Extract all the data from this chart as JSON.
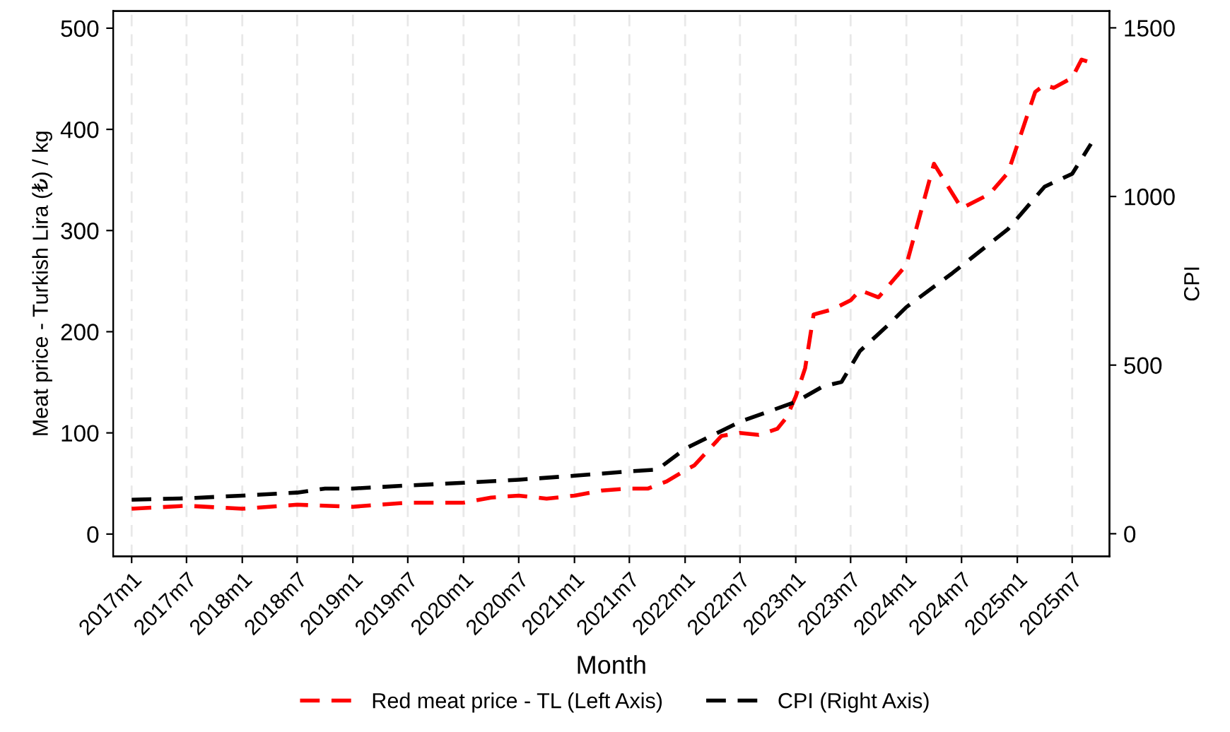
{
  "chart_data": {
    "type": "line",
    "xlabel": "Month",
    "ylabel": "Meat price - Turkish Lira (₺) / kg",
    "y2label": "CPI",
    "series": [
      {
        "name": "Red meat price - TL (Left Axis)",
        "color": "#ff0000",
        "axis": "y",
        "line_style": "dashed",
        "x": [
          "2017-01",
          "2017-07",
          "2018-01",
          "2018-07",
          "2019-01",
          "2019-07",
          "2020-01",
          "2020-04",
          "2020-07",
          "2020-10",
          "2021-01",
          "2021-04",
          "2021-07",
          "2021-09",
          "2021-11",
          "2022-01",
          "2022-02",
          "2022-05",
          "2022-07",
          "2022-09",
          "2022-11",
          "2022-12",
          "2023-01",
          "2023-02",
          "2023-03",
          "2023-05",
          "2023-07",
          "2023-08",
          "2023-10",
          "2024-01",
          "2024-04",
          "2024-07",
          "2024-10",
          "2024-12",
          "2025-03",
          "2025-04",
          "2025-05",
          "2025-07",
          "2025-08",
          "2025-09"
        ],
        "values": [
          25,
          28,
          25,
          29,
          27,
          31,
          31,
          36,
          38,
          35,
          38,
          43,
          45,
          45,
          52,
          63,
          68,
          97,
          100,
          98,
          104,
          115,
          136,
          164,
          217,
          222,
          231,
          241,
          234,
          266,
          366,
          322,
          336,
          357,
          437,
          444,
          441,
          451,
          469,
          466
        ]
      },
      {
        "name": "CPI (Right Axis)",
        "color": "#000000",
        "axis": "y2",
        "line_style": "dashed",
        "x": [
          "2017-01",
          "2017-07",
          "2018-01",
          "2018-07",
          "2018-10",
          "2019-01",
          "2019-07",
          "2020-01",
          "2020-07",
          "2021-01",
          "2021-07",
          "2021-10",
          "2022-01",
          "2022-07",
          "2023-01",
          "2023-04",
          "2023-06",
          "2023-08",
          "2023-11",
          "2024-01",
          "2024-06",
          "2024-12",
          "2025-04",
          "2025-07",
          "2025-09"
        ],
        "values": [
          101,
          105,
          113,
          122,
          134,
          134,
          143,
          151,
          160,
          172,
          185,
          190,
          252,
          332,
          391,
          437,
          450,
          542,
          618,
          672,
          773,
          903,
          1029,
          1067,
          1156
        ]
      }
    ],
    "xlim": [
      "2016-11",
      "2025-11"
    ],
    "xticks": [
      {
        "value": "2017-01",
        "label": "2017m1"
      },
      {
        "value": "2017-07",
        "label": "2017m7"
      },
      {
        "value": "2018-01",
        "label": "2018m1"
      },
      {
        "value": "2018-07",
        "label": "2018m7"
      },
      {
        "value": "2019-01",
        "label": "2019m1"
      },
      {
        "value": "2019-07",
        "label": "2019m7"
      },
      {
        "value": "2020-01",
        "label": "2020m1"
      },
      {
        "value": "2020-07",
        "label": "2020m7"
      },
      {
        "value": "2021-01",
        "label": "2021m1"
      },
      {
        "value": "2021-07",
        "label": "2021m7"
      },
      {
        "value": "2022-01",
        "label": "2022m1"
      },
      {
        "value": "2022-07",
        "label": "2022m7"
      },
      {
        "value": "2023-01",
        "label": "2023m1"
      },
      {
        "value": "2023-07",
        "label": "2023m7"
      },
      {
        "value": "2024-01",
        "label": "2024m1"
      },
      {
        "value": "2024-07",
        "label": "2024m7"
      },
      {
        "value": "2025-01",
        "label": "2025m1"
      },
      {
        "value": "2025-07",
        "label": "2025m7"
      }
    ],
    "ylim": [
      -22,
      517
    ],
    "yticks": [
      0,
      100,
      200,
      300,
      400,
      500
    ],
    "y2lim": [
      -67,
      1550
    ],
    "y2ticks": [
      0,
      500,
      1000,
      1500
    ],
    "grid": "x",
    "legend": "bottom",
    "marker": "none"
  }
}
